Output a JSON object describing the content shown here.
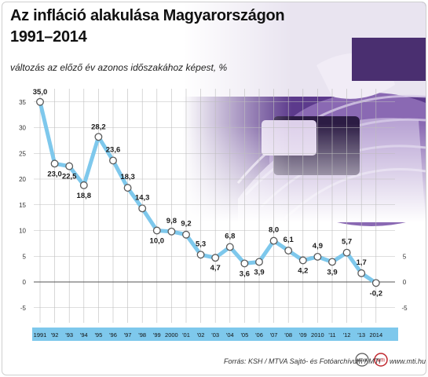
{
  "header": {
    "title_line1": "Az infláció alakulása Magyarországon",
    "title_line2": "1991–2014",
    "subtitle": "változás az előző év azonos időszakához képest, %"
  },
  "footer": {
    "source": "Forrás: KSH / MTVA Sajtó- és Fotóarchívum / MTI",
    "website": "www.mti.hu",
    "logo1_text": "MTVA",
    "logo2_text": "MTI"
  },
  "colors": {
    "line": "#7ec8ec",
    "marker_fill": "#ffffff",
    "marker_stroke": "#5a5a5a",
    "grid": "#bdbdbd",
    "photo_accent": "#6a3f9a",
    "xaxis_band": "#7ec8ec"
  },
  "chart_data": {
    "type": "line",
    "title": "Az infláció alakulása Magyarországon 1991–2014",
    "subtitle": "változás az előző év azonos időszakához képest, %",
    "categories": [
      "1991",
      "'92",
      "'93",
      "'94",
      "'95",
      "'96",
      "'97",
      "'98",
      "'99",
      "2000",
      "'01",
      "'02",
      "'03",
      "'04",
      "'05",
      "'06",
      "'07",
      "'08",
      "'09",
      "2010",
      "'11",
      "'12",
      "'13",
      "2014"
    ],
    "series": [
      {
        "values": [
          35.0,
          23.0,
          22.5,
          18.8,
          28.2,
          23.6,
          18.3,
          14.3,
          10.0,
          9.8,
          9.2,
          5.3,
          4.7,
          6.8,
          3.6,
          3.9,
          8.0,
          6.1,
          4.2,
          4.9,
          3.9,
          5.7,
          1.7,
          -0.2
        ],
        "labels": [
          "35,0",
          "23,0",
          "22,5",
          "18,8",
          "28,2",
          "23,6",
          "18,3",
          "14,3",
          "10,0",
          "9,8",
          "9,2",
          "5,3",
          "4,7",
          "6,8",
          "3,6",
          "3,9",
          "8,0",
          "6,1",
          "4,2",
          "4,9",
          "3,9",
          "5,7",
          "1,7",
          "-0,2"
        ]
      }
    ],
    "ylim": [
      -7,
      37
    ],
    "yticks_left": [
      "35",
      "30",
      "25",
      "20",
      "15",
      "10",
      "5",
      "0",
      "-5"
    ],
    "yticks_right": [
      "5",
      "0",
      "-5"
    ],
    "grid": true
  }
}
